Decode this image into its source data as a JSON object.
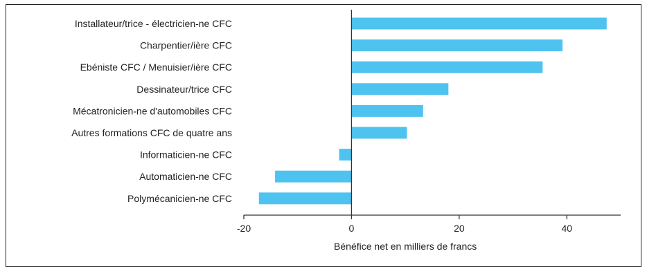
{
  "chart_data": {
    "type": "bar",
    "orientation": "horizontal",
    "categories": [
      "Installateur/trice - électricien-ne CFC",
      "Charpentier/ière CFC",
      "Ebéniste CFC / Menuisier/ière CFC",
      "Dessinateur/trice CFC",
      "Mécatronicien-ne d'automobiles CFC",
      "Autres formations CFC de quatre ans",
      "Informaticien-ne CFC",
      "Automaticien-ne CFC",
      "Polymécanicien-ne CFC"
    ],
    "values": [
      47.4,
      39.2,
      35.5,
      18.0,
      13.3,
      10.3,
      -2.3,
      -14.2,
      -17.2
    ],
    "xlabel": "Bénéfice net en milliers de francs",
    "xlim": [
      -20,
      50
    ],
    "xticks": [
      -20,
      0,
      20,
      40
    ],
    "xtick_labels": [
      "-20",
      "0",
      "20",
      "40"
    ],
    "bar_color": "#4fc3f0",
    "grid": false
  }
}
